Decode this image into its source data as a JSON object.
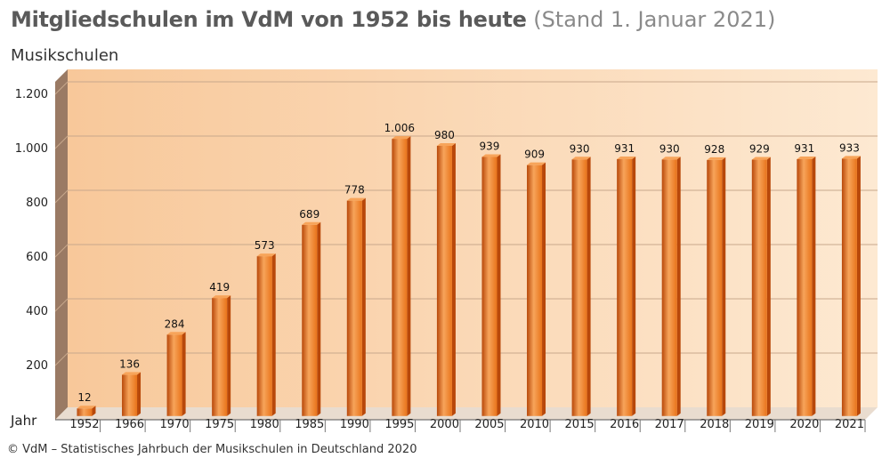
{
  "header": {
    "title": "Mitgliedschulen im VdM von 1952 bis heute",
    "subtitle": "(Stand 1. Januar 2021)"
  },
  "source": "© VdM – Statistisches Jahrbuch der Musikschulen in Deutschland 2020",
  "chart_data": {
    "type": "bar",
    "title": "Mitgliedschulen im VdM von 1952 bis heute",
    "subtitle": "(Stand 1. Januar 2021)",
    "ylabel": "Musikschulen",
    "xlabel": "Jahr",
    "ylim": [
      0,
      1200
    ],
    "yticks": [
      200,
      400,
      600,
      800,
      1000,
      1200
    ],
    "ytick_labels": [
      "200",
      "400",
      "600",
      "800",
      "1.000",
      "1.200"
    ],
    "grid": true,
    "legend": "none",
    "categories": [
      "1952",
      "1966",
      "1970",
      "1975",
      "1980",
      "1985",
      "1990",
      "1995",
      "2000",
      "2005",
      "2010",
      "2015",
      "2016",
      "2017",
      "2018",
      "2019",
      "2020",
      "2021"
    ],
    "values": [
      12,
      136,
      284,
      419,
      573,
      689,
      778,
      1006,
      980,
      939,
      909,
      930,
      931,
      930,
      928,
      929,
      931,
      933
    ],
    "value_labels": [
      "12",
      "136",
      "284",
      "419",
      "573",
      "689",
      "778",
      "1.006",
      "980",
      "939",
      "909",
      "930",
      "931",
      "930",
      "928",
      "929",
      "931",
      "933"
    ],
    "colors": {
      "bar": "#e8731a",
      "bar_dark": "#b8480a",
      "bar_light": "#f7a45a",
      "background_left": "#f8c89a",
      "background_right": "#fde9d2",
      "wall": "#9a7a64",
      "grid": "#c8a88c"
    }
  }
}
